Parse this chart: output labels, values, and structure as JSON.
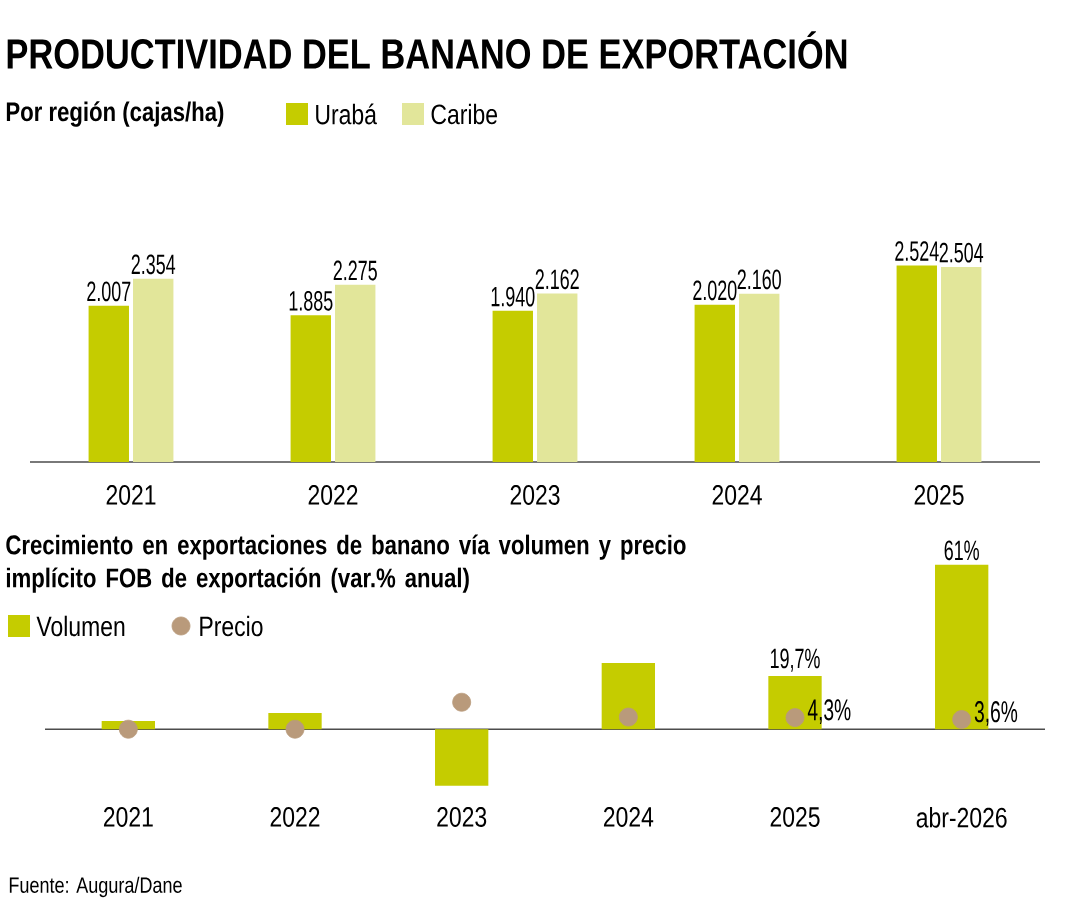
{
  "chart_data": [
    {
      "type": "bar",
      "title": "PRODUCTIVIDAD DEL BANANO DE EXPORTACIÓN",
      "subtitle": "Por región (cajas/ha)",
      "categories": [
        "2021",
        "2022",
        "2023",
        "2024",
        "2025"
      ],
      "legend": "top left",
      "series": [
        {
          "name": "Urabá",
          "color": "#c5cc00",
          "values": [
            2007,
            1885,
            1940,
            2020,
            2524
          ],
          "value_labels": [
            "2.007",
            "1.885",
            "1.940",
            "2.020",
            "2.524"
          ]
        },
        {
          "name": "Caribe",
          "color": "#e2e69a",
          "values": [
            2354,
            2275,
            2162,
            2160,
            2504
          ],
          "value_labels": [
            "2.354",
            "2.275",
            "2.162",
            "2.160",
            "2.504"
          ]
        }
      ]
    },
    {
      "type": "bar",
      "title": "Crecimiento en exportaciones de banano vía volumen y precio implícito FOB de exportación (var.% anual)",
      "categories": [
        "2021",
        "2022",
        "2023",
        "2024",
        "2025",
        "abr-2026"
      ],
      "legend": "top left",
      "annotations": [
        "Fuente: Augura/Dane"
      ],
      "series": [
        {
          "name": "Volumen",
          "type": "bar",
          "color": "#c5cc00",
          "values": [
            3,
            6,
            -21,
            24.5,
            19.7,
            61
          ],
          "value_labels": [
            null,
            null,
            null,
            null,
            "19,7%",
            "61%"
          ]
        },
        {
          "name": "Precio",
          "type": "scatter",
          "marker": "circle",
          "color": "#b99a7b",
          "values": [
            0,
            0,
            10,
            4.5,
            4.3,
            3.6
          ],
          "value_labels": [
            null,
            null,
            null,
            null,
            "4,3%",
            "3,6%"
          ]
        }
      ]
    }
  ]
}
